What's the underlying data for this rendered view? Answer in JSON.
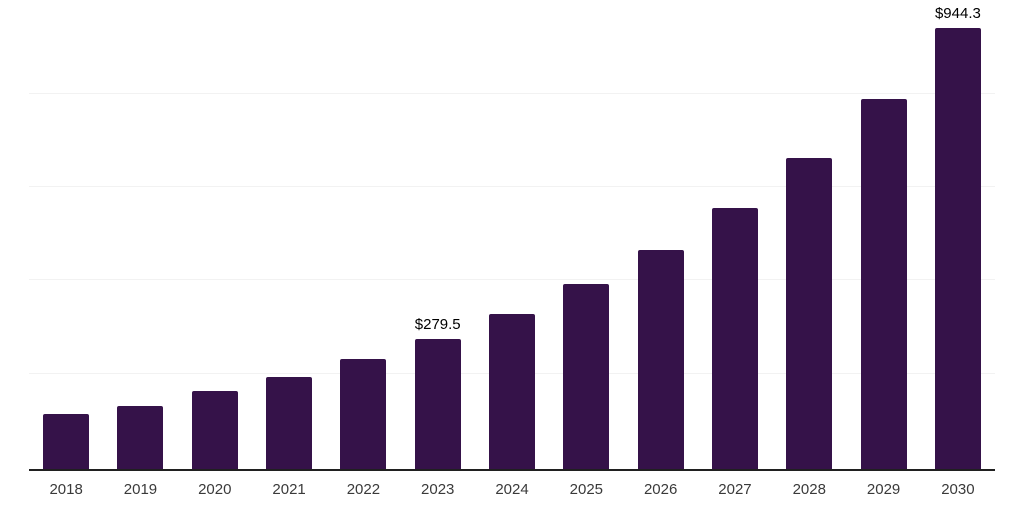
{
  "chart_data": {
    "type": "bar",
    "title": "",
    "xlabel": "",
    "ylabel": "",
    "categories": [
      "2018",
      "2019",
      "2020",
      "2021",
      "2022",
      "2023",
      "2024",
      "2025",
      "2026",
      "2027",
      "2028",
      "2029",
      "2030"
    ],
    "values": [
      118.0,
      135.5,
      166.5,
      198.0,
      235.0,
      279.5,
      333.0,
      395.5,
      469.0,
      559.5,
      666.5,
      792.5,
      944.3
    ],
    "value_labels": [
      {
        "index": 5,
        "text": "$279.5"
      },
      {
        "index": 12,
        "text": "$944.3"
      }
    ],
    "ylim": [
      0,
      1005
    ],
    "gridline_values": [
      200,
      400,
      600,
      800,
      1000
    ],
    "y_axis_tick_labels_visible": false,
    "legend": "none",
    "grid": "horizontal",
    "colors": {
      "bar": "#351249",
      "axis_line": "#202020",
      "gridline": "#F2F2F2",
      "value_label": "#000000",
      "tick_label": "#3A3A3A",
      "background": "#FFFFFF"
    }
  }
}
